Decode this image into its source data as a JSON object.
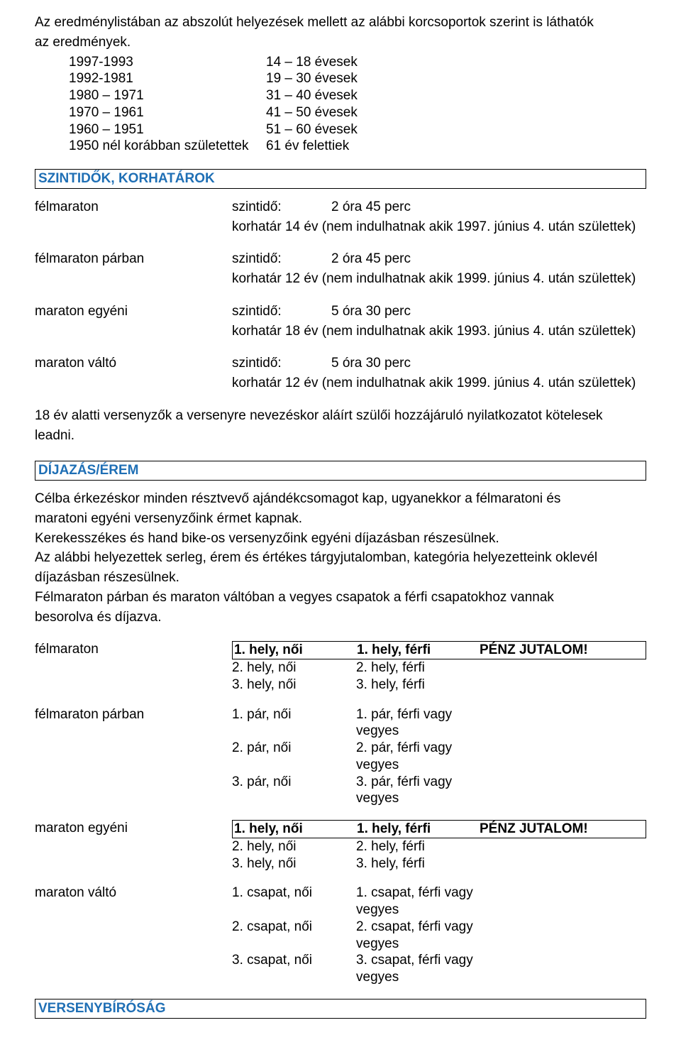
{
  "colors": {
    "text": "#000000",
    "background": "#ffffff",
    "section_title": "#1f6fb5",
    "border": "#000000"
  },
  "intro": {
    "line1": "Az eredménylistában az abszolút helyezések mellett az alábbi korcsoportok szerint is láthatók",
    "line2": "az eredmények."
  },
  "ageGroups": [
    {
      "years": "1997-1993",
      "label": "14 – 18 évesek"
    },
    {
      "years": "1992-1981",
      "label": "19 – 30 évesek"
    },
    {
      "years": "1980 – 1971",
      "label": "31 – 40 évesek"
    },
    {
      "years": "1970 – 1961",
      "label": "41 – 50 évesek"
    },
    {
      "years": "1960 – 1951",
      "label": "51 – 60 évesek"
    },
    {
      "years": "1950 nél korábban születettek",
      "label": "61 év felettiek"
    }
  ],
  "sections": {
    "limits": "SZINTIDŐK, KORHATÁROK",
    "prizes": "DÍJAZÁS/ÉREM",
    "jury": "VERSENYBÍRÓSÁG"
  },
  "categories": [
    {
      "name": "félmaraton",
      "szintido_label": "szintidő:",
      "szintido_value": "2 óra 45 perc",
      "korhatar": "korhatár  14 év (nem indulhatnak akik 1997. június 4. után születtek)"
    },
    {
      "name": "félmaraton  párban",
      "szintido_label": "szintidő:",
      "szintido_value": "2 óra 45 perc",
      "korhatar": "korhatár 12 év  (nem indulhatnak akik 1999. június 4. után születtek)"
    },
    {
      "name": "maraton egyéni",
      "szintido_label": "szintidő:",
      "szintido_value": "5 óra 30 perc",
      "korhatar": "korhatár  18 év (nem indulhatnak akik 1993. június 4. után születtek)"
    },
    {
      "name": "maraton váltó",
      "szintido_label": "szintidő:",
      "szintido_value": "5 óra 30 perc",
      "korhatar": "korhatár 12 év  (nem indulhatnak akik 1999. június 4. után születtek)"
    }
  ],
  "u18": {
    "line1": "18 év alatti versenyzők a versenyre nevezéskor aláírt szülői hozzájáruló nyilatkozatot kötelesek",
    "line2": "leadni."
  },
  "prizeIntro": [
    "Célba érkezéskor minden résztvevő ajándékcsomagot kap, ugyanekkor a félmaratoni és",
    "maratoni egyéni versenyzőink érmet kapnak.",
    "Kerekesszékes és hand bike-os versenyzőink egyéni díjazásban részesülnek.",
    "Az alábbi helyezettek serleg, érem és értékes tárgyjutalomban, kategória helyezetteink oklevél",
    "díjazásban részesülnek.",
    "Félmaraton párban és maraton váltóban a vegyes csapatok a férfi csapatokhoz vannak",
    "besorolva és díjazva."
  ],
  "prizeTables": [
    {
      "name": "félmaraton",
      "boxed": true,
      "rows": [
        {
          "c2": "1. hely, női",
          "c3": "1. hely, férfi",
          "c4": "PÉNZ JUTALOM!"
        },
        {
          "c2": "2. hely, női",
          "c3": "2. hely, férfi",
          "c4": ""
        },
        {
          "c2": "3. hely, női",
          "c3": "3. hely, férfi",
          "c4": ""
        }
      ]
    },
    {
      "name": "félmaraton párban",
      "boxed": false,
      "rows": [
        {
          "c2": "1. pár, női",
          "c3": "1. pár, férfi vagy vegyes",
          "c4": ""
        },
        {
          "c2": "2. pár, női",
          "c3": "2. pár, férfi vagy vegyes",
          "c4": ""
        },
        {
          "c2": "3. pár, női",
          "c3": "3. pár, férfi vagy vegyes",
          "c4": ""
        }
      ]
    },
    {
      "name": "maraton egyéni",
      "boxed": true,
      "rows": [
        {
          "c2": "1. hely, női",
          "c3": "1. hely, férfi",
          "c4": "PÉNZ JUTALOM!"
        },
        {
          "c2": "2. hely, női",
          "c3": "2. hely, férfi",
          "c4": ""
        },
        {
          "c2": "3. hely, női",
          "c3": "3. hely, férfi",
          "c4": ""
        }
      ]
    },
    {
      "name": "maraton váltó",
      "boxed": false,
      "rows": [
        {
          "c2": "1. csapat, női",
          "c3": "1. csapat, férfi vagy vegyes",
          "c4": ""
        },
        {
          "c2": "2. csapat, női",
          "c3": "2. csapat, férfi vagy vegyes",
          "c4": ""
        },
        {
          "c2": "3. csapat, női",
          "c3": "3. csapat, férfi vagy vegyes",
          "c4": ""
        }
      ]
    }
  ]
}
